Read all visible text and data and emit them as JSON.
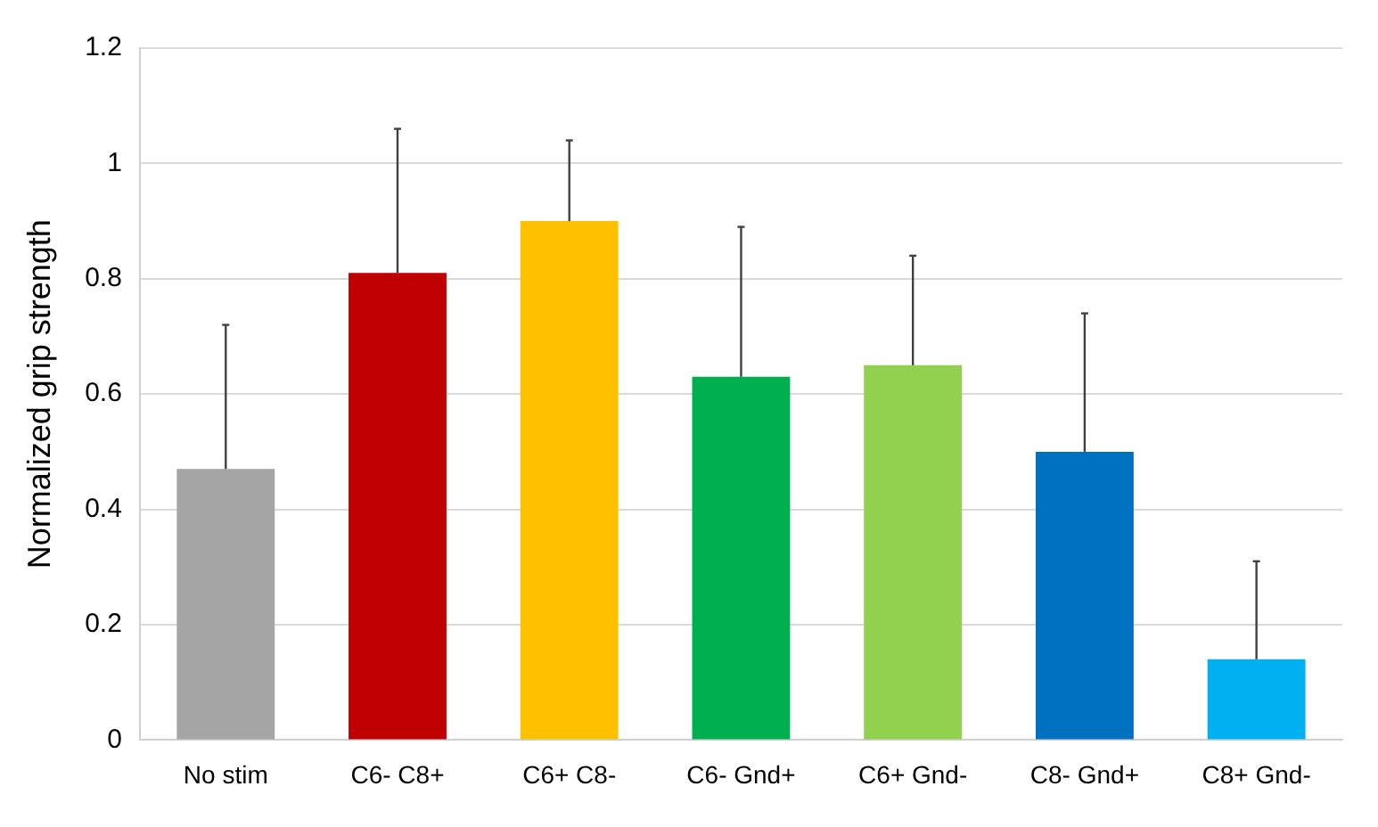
{
  "chart_data": {
    "type": "bar",
    "ylabel": "Normalized grip strength",
    "categories": [
      "No stim",
      "C6- C8+",
      "C6+ C8-",
      "C6- Gnd+",
      "C6+ Gnd-",
      "C8- Gnd+",
      "C8+ Gnd-"
    ],
    "values": [
      0.47,
      0.81,
      0.9,
      0.63,
      0.65,
      0.5,
      0.14
    ],
    "colors": [
      "#a5a5a5",
      "#c00000",
      "#ffc000",
      "#00b050",
      "#92d050",
      "#0070c0",
      "#00b0f0"
    ],
    "errors": [
      [
        0.47,
        0.72
      ],
      [
        0.81,
        1.06
      ],
      [
        0.9,
        1.04
      ],
      [
        0.63,
        0.89
      ],
      [
        0.65,
        0.84
      ],
      [
        0.5,
        0.74
      ],
      [
        0.14,
        0.31
      ]
    ],
    "ylim": [
      0,
      1.2
    ],
    "yticks": [
      0,
      {
        "value": 0.2,
        "label": "0.2"
      },
      {
        "value": 0.4,
        "label": "0.4"
      },
      {
        "value": 0.6,
        "label": "0.6"
      },
      {
        "value": 0.8,
        "label": "0.8"
      },
      1,
      {
        "value": 1.2,
        "label": "1.2"
      }
    ],
    "grid": "y",
    "legend": false
  }
}
